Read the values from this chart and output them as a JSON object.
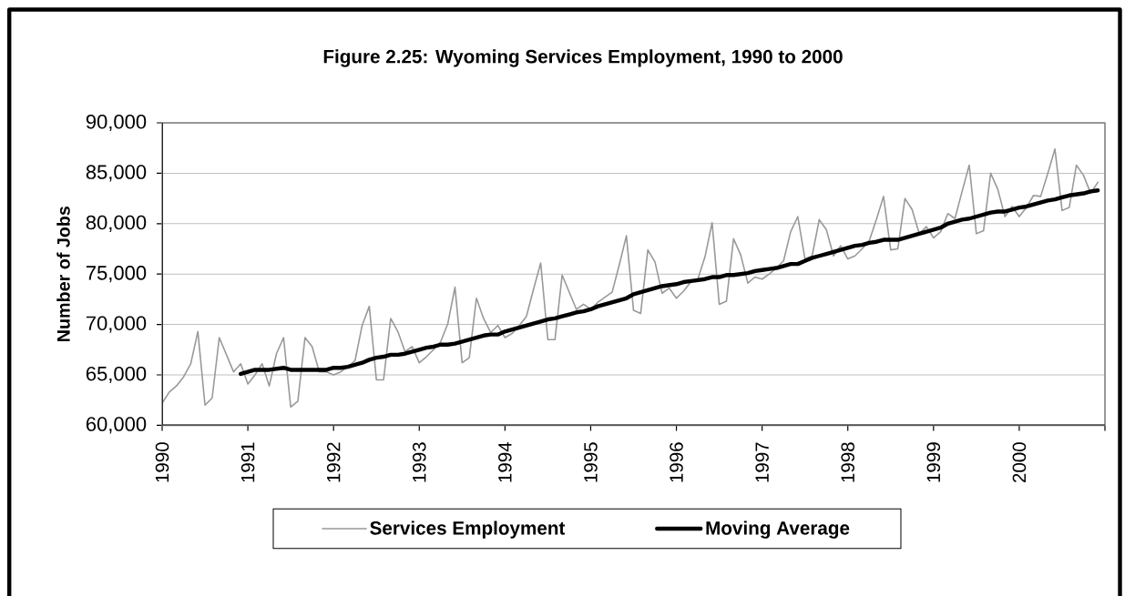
{
  "chart_data": {
    "type": "line",
    "title": "Figure 2.25: Wyoming Services Employment, 1990 to 2000",
    "ylabel": "Number of Jobs",
    "x": [
      "1990-01",
      "1990-02",
      "1990-03",
      "1990-04",
      "1990-05",
      "1990-06",
      "1990-07",
      "1990-08",
      "1990-09",
      "1990-10",
      "1990-11",
      "1990-12",
      "1991-01",
      "1991-02",
      "1991-03",
      "1991-04",
      "1991-05",
      "1991-06",
      "1991-07",
      "1991-08",
      "1991-09",
      "1991-10",
      "1991-11",
      "1991-12",
      "1992-01",
      "1992-02",
      "1992-03",
      "1992-04",
      "1992-05",
      "1992-06",
      "1992-07",
      "1992-08",
      "1992-09",
      "1992-10",
      "1992-11",
      "1992-12",
      "1993-01",
      "1993-02",
      "1993-03",
      "1993-04",
      "1993-05",
      "1993-06",
      "1993-07",
      "1993-08",
      "1993-09",
      "1993-10",
      "1993-11",
      "1993-12",
      "1994-01",
      "1994-02",
      "1994-03",
      "1994-04",
      "1994-05",
      "1994-06",
      "1994-07",
      "1994-08",
      "1994-09",
      "1994-10",
      "1994-11",
      "1994-12",
      "1995-01",
      "1995-02",
      "1995-03",
      "1995-04",
      "1995-05",
      "1995-06",
      "1995-07",
      "1995-08",
      "1995-09",
      "1995-10",
      "1995-11",
      "1995-12",
      "1996-01",
      "1996-02",
      "1996-03",
      "1996-04",
      "1996-05",
      "1996-06",
      "1996-07",
      "1996-08",
      "1996-09",
      "1996-10",
      "1996-11",
      "1996-12",
      "1997-01",
      "1997-02",
      "1997-03",
      "1997-04",
      "1997-05",
      "1997-06",
      "1997-07",
      "1997-08",
      "1997-09",
      "1997-10",
      "1997-11",
      "1997-12",
      "1998-01",
      "1998-02",
      "1998-03",
      "1998-04",
      "1998-05",
      "1998-06",
      "1998-07",
      "1998-08",
      "1998-09",
      "1998-10",
      "1998-11",
      "1998-12",
      "1999-01",
      "1999-02",
      "1999-03",
      "1999-04",
      "1999-05",
      "1999-06",
      "1999-07",
      "1999-08",
      "1999-09",
      "1999-10",
      "1999-11",
      "1999-12",
      "2000-01",
      "2000-02",
      "2000-03",
      "2000-04",
      "2000-05",
      "2000-06",
      "2000-07",
      "2000-08",
      "2000-09",
      "2000-10",
      "2000-11",
      "2000-12"
    ],
    "series": [
      {
        "name": "Services Employment",
        "color": "#999999",
        "values": [
          62200,
          63300,
          63900,
          64800,
          66100,
          69300,
          62000,
          62700,
          68700,
          67000,
          65300,
          66100,
          64100,
          65000,
          66100,
          63900,
          67100,
          68700,
          61800,
          62400,
          68700,
          67800,
          65300,
          65300,
          65000,
          65300,
          65800,
          66400,
          69900,
          71800,
          64500,
          64500,
          70600,
          69300,
          67300,
          67800,
          66200,
          66800,
          67500,
          68300,
          70100,
          73700,
          66200,
          66700,
          72600,
          70600,
          69200,
          69900,
          68700,
          69100,
          69900,
          70800,
          73500,
          76100,
          68500,
          68500,
          74900,
          73200,
          71500,
          72000,
          71500,
          72200,
          72700,
          73200,
          75900,
          78800,
          71400,
          71100,
          77400,
          76200,
          73100,
          73600,
          72600,
          73300,
          74200,
          74500,
          76700,
          80100,
          72000,
          72300,
          78500,
          76900,
          74100,
          74700,
          74500,
          75000,
          75600,
          76300,
          79200,
          80700,
          76500,
          76800,
          80400,
          79400,
          76800,
          77800,
          76500,
          76800,
          77500,
          78300,
          80400,
          82700,
          77400,
          77500,
          82500,
          81400,
          79000,
          79700,
          78600,
          79200,
          81000,
          80500,
          83200,
          85800,
          79000,
          79300,
          85000,
          83400,
          80700,
          81700,
          80700,
          81600,
          82800,
          82700,
          85000,
          87400,
          81300,
          81600,
          85800,
          84800,
          83000,
          84100
        ]
      },
      {
        "name": "Moving Average",
        "color": "#000000",
        "values": [
          null,
          null,
          null,
          null,
          null,
          null,
          null,
          null,
          null,
          null,
          null,
          65100,
          65300,
          65500,
          65500,
          65500,
          65600,
          65700,
          65500,
          65500,
          65500,
          65500,
          65500,
          65500,
          65700,
          65700,
          65800,
          66000,
          66200,
          66500,
          66700,
          66800,
          67000,
          67000,
          67100,
          67300,
          67500,
          67700,
          67800,
          68000,
          68000,
          68100,
          68300,
          68500,
          68700,
          68900,
          69000,
          69000,
          69300,
          69500,
          69700,
          69900,
          70100,
          70300,
          70500,
          70600,
          70800,
          71000,
          71200,
          71300,
          71500,
          71800,
          72000,
          72200,
          72400,
          72600,
          73000,
          73200,
          73400,
          73600,
          73800,
          73900,
          74000,
          74200,
          74300,
          74400,
          74500,
          74700,
          74700,
          74900,
          74900,
          75000,
          75100,
          75300,
          75400,
          75500,
          75600,
          75800,
          76000,
          76000,
          76300,
          76600,
          76800,
          77000,
          77200,
          77400,
          77600,
          77800,
          77900,
          78100,
          78200,
          78400,
          78400,
          78400,
          78600,
          78800,
          79000,
          79200,
          79400,
          79600,
          80000,
          80200,
          80400,
          80500,
          80700,
          80900,
          81100,
          81200,
          81200,
          81400,
          81600,
          81700,
          81900,
          82100,
          82300,
          82400,
          82600,
          82800,
          82900,
          83000,
          83200,
          83300
        ]
      }
    ],
    "xlim": [
      "1990",
      "2001"
    ],
    "xticks": [
      "1990",
      "1991",
      "1992",
      "1993",
      "1994",
      "1995",
      "1996",
      "1997",
      "1998",
      "1999",
      "2000",
      {
        "value": "2001",
        "label": null
      }
    ],
    "ylim": [
      60000,
      90000
    ],
    "yticks": [
      {
        "value": 60000,
        "label": "60,000"
      },
      {
        "value": 65000,
        "label": "65,000"
      },
      {
        "value": 70000,
        "label": "70,000"
      },
      {
        "value": 75000,
        "label": "75,000"
      },
      {
        "value": 80000,
        "label": "80,000"
      },
      {
        "value": 85000,
        "label": "85,000"
      },
      {
        "value": 90000,
        "label": "90,000"
      }
    ],
    "grid": "y",
    "legend": "bottom",
    "marker": "none"
  }
}
